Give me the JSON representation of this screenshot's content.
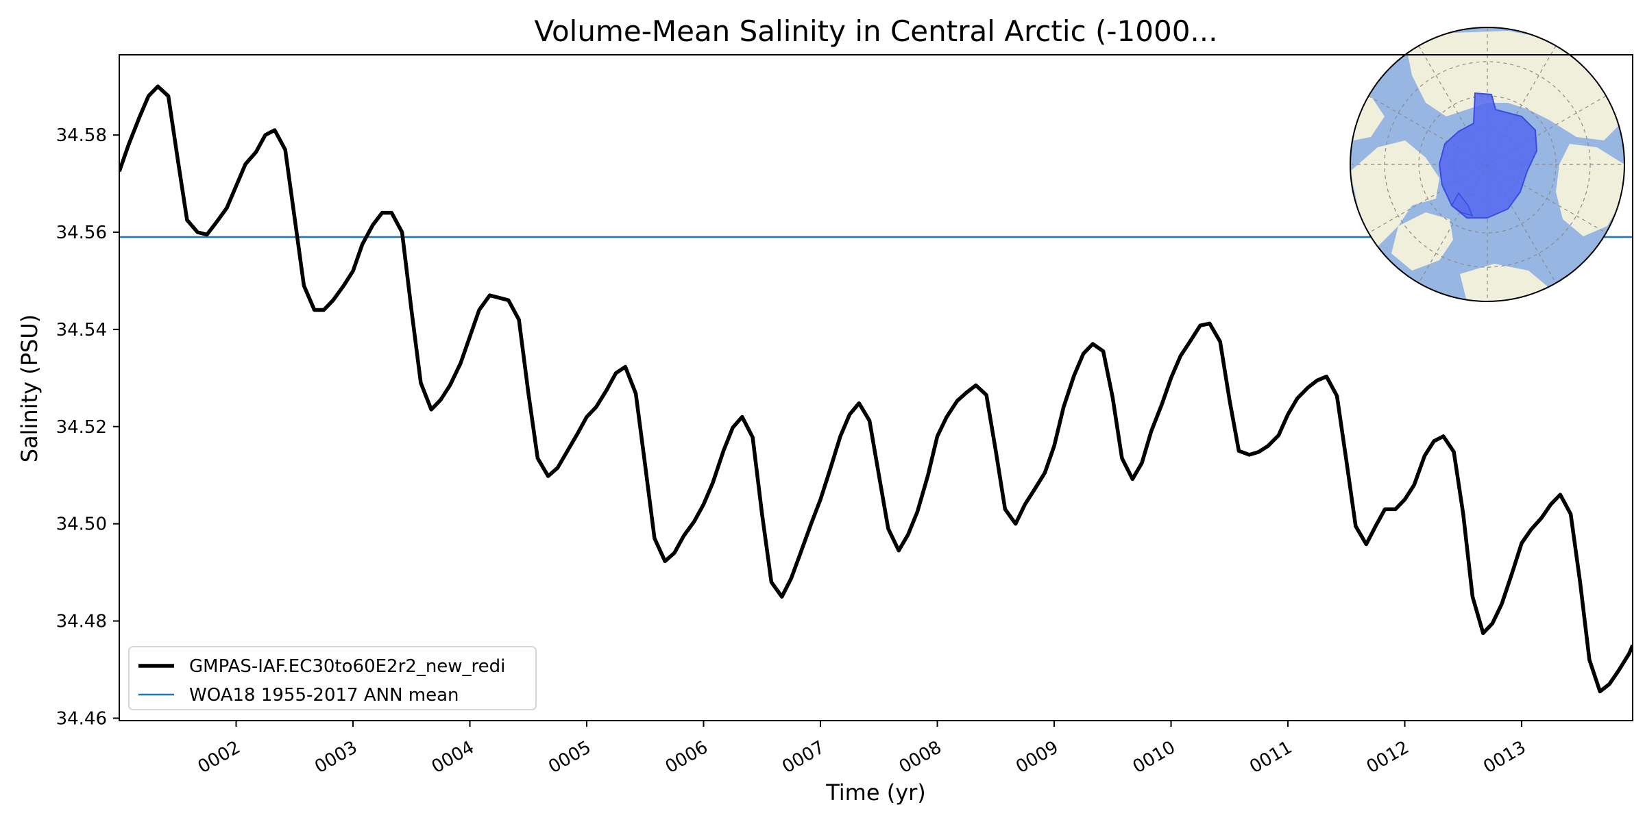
{
  "chart_data": {
    "type": "line",
    "title": "Volume-Mean Salinity in Central Arctic (-1000...",
    "xlabel": "Time (yr)",
    "ylabel": "Salinity (PSU)",
    "xlim": [
      1.0,
      13.95
    ],
    "ylim": [
      34.4595,
      34.5965
    ],
    "x_ticks": [
      2,
      3,
      4,
      5,
      6,
      7,
      8,
      9,
      10,
      11,
      12,
      13
    ],
    "x_tick_labels": [
      "0002",
      "0003",
      "0004",
      "0005",
      "0006",
      "0007",
      "0008",
      "0009",
      "0010",
      "0011",
      "0012",
      "0013"
    ],
    "y_ticks": [
      34.46,
      34.48,
      34.5,
      34.52,
      34.54,
      34.56,
      34.58
    ],
    "y_tick_labels": [
      "34.46",
      "34.48",
      "34.50",
      "34.52",
      "34.54",
      "34.56",
      "34.58"
    ],
    "grid": false,
    "legend_position": "lower-left",
    "series": [
      {
        "name": "GMPAS-IAF.EC30to60E2r2_new_redi",
        "color": "#000000",
        "x": [
          1.0,
          1.08,
          1.17,
          1.25,
          1.33,
          1.42,
          1.5,
          1.58,
          1.67,
          1.75,
          1.83,
          1.92,
          2.0,
          2.08,
          2.17,
          2.25,
          2.33,
          2.42,
          2.5,
          2.58,
          2.67,
          2.75,
          2.83,
          2.92,
          3.0,
          3.08,
          3.17,
          3.25,
          3.33,
          3.42,
          3.5,
          3.58,
          3.67,
          3.75,
          3.83,
          3.92,
          4.0,
          4.08,
          4.17,
          4.25,
          4.33,
          4.42,
          4.5,
          4.58,
          4.67,
          4.75,
          4.83,
          4.92,
          5.0,
          5.08,
          5.17,
          5.25,
          5.33,
          5.42,
          5.5,
          5.58,
          5.67,
          5.75,
          5.83,
          5.92,
          6.0,
          6.08,
          6.17,
          6.25,
          6.33,
          6.42,
          6.5,
          6.58,
          6.67,
          6.75,
          6.83,
          6.92,
          7.0,
          7.08,
          7.17,
          7.25,
          7.33,
          7.42,
          7.5,
          7.58,
          7.67,
          7.75,
          7.83,
          7.92,
          8.0,
          8.08,
          8.17,
          8.25,
          8.33,
          8.42,
          8.5,
          8.58,
          8.67,
          8.75,
          8.83,
          8.92,
          9.0,
          9.08,
          9.17,
          9.25,
          9.33,
          9.42,
          9.5,
          9.58,
          9.67,
          9.75,
          9.83,
          9.92,
          10.0,
          10.08,
          10.17,
          10.25,
          10.33,
          10.42,
          10.5,
          10.58,
          10.67,
          10.75,
          10.83,
          10.92,
          11.0,
          11.08,
          11.17,
          11.25,
          11.33,
          11.42,
          11.5,
          11.58,
          11.67,
          11.75,
          11.83,
          11.92,
          12.0,
          12.08,
          12.17,
          12.25,
          12.33,
          12.42,
          12.5,
          12.58,
          12.67,
          12.75,
          12.83,
          12.92,
          13.0,
          13.08,
          13.17,
          13.25,
          13.33,
          13.42,
          13.5,
          13.58,
          13.67,
          13.75,
          13.83,
          13.92,
          13.95
        ],
        "y": [
          34.5725,
          34.578,
          34.5835,
          34.588,
          34.59,
          34.588,
          34.575,
          34.5625,
          34.56,
          34.5595,
          34.562,
          34.565,
          34.5695,
          34.574,
          34.5765,
          34.58,
          34.581,
          34.577,
          34.563,
          34.549,
          34.544,
          34.544,
          34.546,
          34.549,
          34.552,
          34.5575,
          34.5615,
          34.564,
          34.564,
          34.56,
          34.544,
          34.529,
          34.5235,
          34.5255,
          34.5285,
          34.533,
          34.5385,
          34.544,
          34.547,
          34.5465,
          34.546,
          34.542,
          34.527,
          34.5135,
          34.5098,
          34.5115,
          34.5148,
          34.5185,
          34.522,
          34.524,
          34.5275,
          34.531,
          34.5323,
          34.5268,
          34.512,
          34.497,
          34.4923,
          34.494,
          34.4975,
          34.5005,
          34.504,
          34.5085,
          34.515,
          34.5198,
          34.522,
          34.5178,
          34.502,
          34.488,
          34.485,
          34.4888,
          34.494,
          34.5,
          34.505,
          34.511,
          34.518,
          34.5225,
          34.5248,
          34.5212,
          34.51,
          34.499,
          34.4945,
          34.4978,
          34.5025,
          34.51,
          34.518,
          34.522,
          34.5253,
          34.527,
          34.5285,
          34.5265,
          34.515,
          34.503,
          34.5,
          34.504,
          34.507,
          34.5105,
          34.516,
          34.524,
          34.5305,
          34.535,
          34.537,
          34.5355,
          34.526,
          34.5135,
          34.5092,
          34.5125,
          34.519,
          34.5245,
          34.53,
          34.5345,
          34.5378,
          34.5408,
          34.5412,
          34.5375,
          34.5255,
          34.515,
          34.5142,
          34.5148,
          34.516,
          34.5182,
          34.5225,
          34.5258,
          34.528,
          34.5295,
          34.5303,
          34.5263,
          34.513,
          34.4995,
          34.4958,
          34.4995,
          34.503,
          34.503,
          34.505,
          34.508,
          34.514,
          34.517,
          34.518,
          34.5148,
          34.502,
          34.485,
          34.4775,
          34.4795,
          34.4835,
          34.49,
          34.496,
          34.4988,
          34.5012,
          34.504,
          34.506,
          34.502,
          34.488,
          34.472,
          34.4655,
          34.467,
          34.4698,
          34.4733,
          34.475
        ]
      },
      {
        "name": "WOA18 1955-2017 ANN mean",
        "color": "#1f77b4",
        "y_const": 34.559
      }
    ],
    "inset_map": "north-polar-stereographic-map with shaded central arctic region",
    "inset_colors": {
      "land": "#efefdb",
      "ocean": "#97b6e1",
      "region": "#5468f0"
    }
  }
}
